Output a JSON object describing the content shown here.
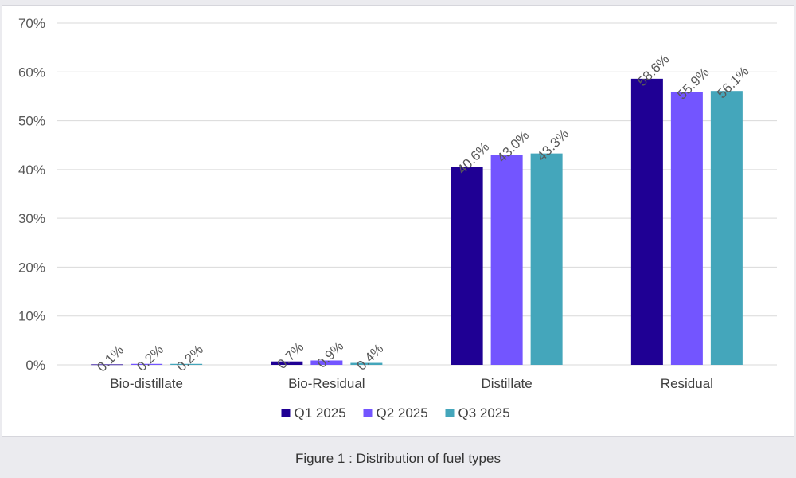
{
  "caption": "Figure 1 : Distribution of fuel types",
  "chart_data": {
    "type": "bar",
    "title": "",
    "xlabel": "",
    "ylabel": "",
    "categories": [
      "Bio-distillate",
      "Bio-Residual",
      "Distillate",
      "Residual"
    ],
    "series": [
      {
        "name": "Q1 2025",
        "color": "#1f0094",
        "values": [
          0.1,
          0.7,
          40.6,
          58.6
        ],
        "labels": [
          "0.1%",
          "0.7%",
          "40.6%",
          "58.6%"
        ]
      },
      {
        "name": "Q2 2025",
        "color": "#7355ff",
        "values": [
          0.2,
          0.9,
          43.0,
          55.9
        ],
        "labels": [
          "0.2%",
          "0.9%",
          "43.0%",
          "55.9%"
        ]
      },
      {
        "name": "Q3 2025",
        "color": "#44a6bb",
        "values": [
          0.2,
          0.4,
          43.3,
          56.1
        ],
        "labels": [
          "0.2%",
          "0.4%",
          "43.3%",
          "56.1%"
        ]
      }
    ],
    "ylim": [
      0,
      70
    ],
    "yticks": [
      0,
      10,
      20,
      30,
      40,
      50,
      60,
      70
    ],
    "ytick_labels": [
      "0%",
      "10%",
      "20%",
      "30%",
      "40%",
      "50%",
      "60%",
      "70%"
    ],
    "grid": true,
    "legend": "bottom"
  }
}
